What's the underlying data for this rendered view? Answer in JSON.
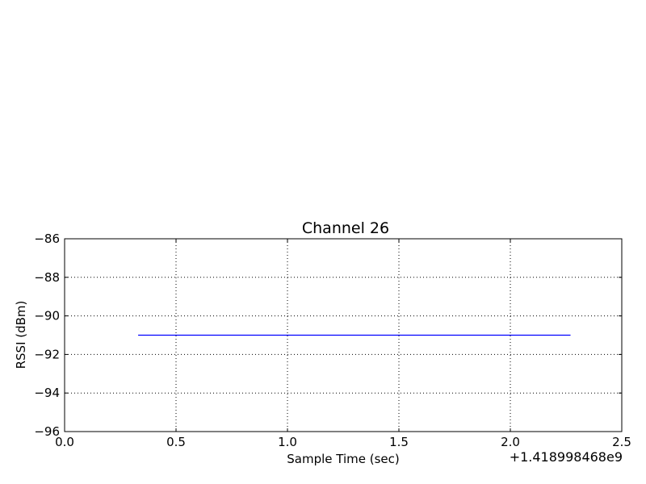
{
  "chart_data": {
    "type": "line",
    "title": "Channel 26",
    "xlabel": "Sample Time (sec)",
    "ylabel": "RSSI (dBm)",
    "x_offset_label": "+1.418998468e9",
    "xlim": [
      0.0,
      2.5
    ],
    "ylim": [
      -96,
      -86
    ],
    "x_ticks": [
      0.0,
      0.5,
      1.0,
      1.5,
      2.0,
      2.5
    ],
    "x_tick_labels": [
      "0.0",
      "0.5",
      "1.0",
      "1.5",
      "2.0",
      "2.5"
    ],
    "y_ticks": [
      -96,
      -94,
      -92,
      -90,
      -88,
      -86
    ],
    "y_tick_labels": [
      "−96",
      "−94",
      "−92",
      "−90",
      "−88",
      "−86"
    ],
    "grid": true,
    "series": [
      {
        "color": "#0000ff",
        "x": [
          0.33,
          2.27
        ],
        "y": [
          -91,
          -91
        ]
      }
    ]
  }
}
